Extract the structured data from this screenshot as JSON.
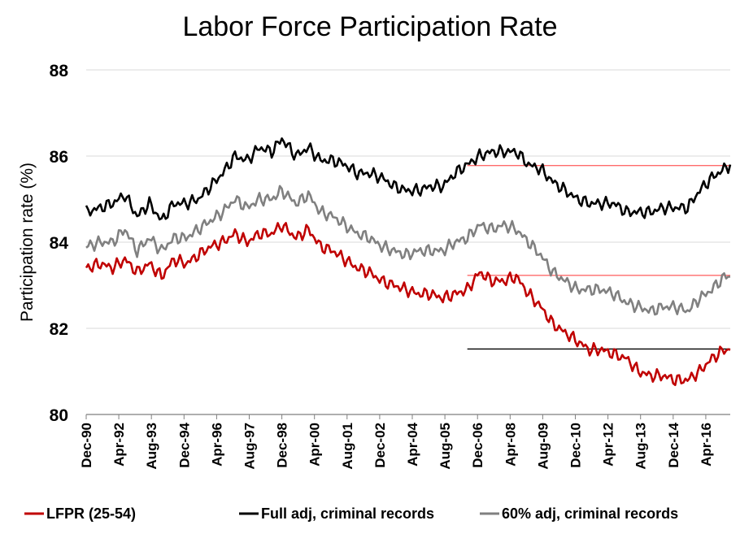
{
  "chart_data": {
    "type": "line",
    "title": "Labor Force Participation Rate",
    "ylabel": "Participation rate (%)",
    "xlabel": "",
    "ylim": [
      80,
      88
    ],
    "yticks": [
      80,
      82,
      84,
      86,
      88
    ],
    "xlim": [
      1990.917,
      2017.25
    ],
    "x_tick_labels": [
      "Dec-90",
      "Apr-92",
      "Aug-93",
      "Dec-94",
      "Apr-96",
      "Aug-97",
      "Dec-98",
      "Apr-00",
      "Aug-01",
      "Dec-02",
      "Apr-04",
      "Aug-05",
      "Dec-06",
      "Apr-08",
      "Aug-09",
      "Dec-10",
      "Apr-12",
      "Aug-13",
      "Dec-14",
      "Apr-16"
    ],
    "x_tick_values": [
      1990.917,
      1992.25,
      1993.583,
      1994.917,
      1996.25,
      1997.583,
      1998.917,
      2000.25,
      2001.583,
      2002.917,
      2004.25,
      2005.583,
      2006.917,
      2008.25,
      2009.583,
      2010.917,
      2012.25,
      2013.583,
      2014.917,
      2016.25
    ],
    "grid": "horizontal",
    "legend_position": "bottom",
    "series": [
      {
        "name": "LFPR (25-54)",
        "color": "#c00000",
        "x": [
          1990.917,
          1991.5,
          1992.0,
          1992.5,
          1993.0,
          1993.5,
          1994.0,
          1994.5,
          1995.0,
          1995.5,
          1996.0,
          1996.5,
          1997.0,
          1997.5,
          1998.0,
          1998.5,
          1998.917,
          1999.5,
          2000.0,
          2000.5,
          2001.0,
          2001.5,
          2002.0,
          2002.5,
          2003.0,
          2003.5,
          2004.0,
          2004.5,
          2005.0,
          2005.5,
          2006.0,
          2006.5,
          2007.0,
          2007.5,
          2008.0,
          2008.5,
          2009.0,
          2009.5,
          2010.0,
          2010.5,
          2011.0,
          2011.5,
          2012.0,
          2012.5,
          2013.0,
          2013.5,
          2014.0,
          2014.5,
          2015.0,
          2015.5,
          2016.0,
          2016.5,
          2017.0,
          2017.25
        ],
        "values": [
          83.4,
          83.5,
          83.4,
          83.6,
          83.3,
          83.5,
          83.2,
          83.6,
          83.5,
          83.7,
          83.9,
          84.0,
          84.2,
          84.0,
          84.2,
          84.2,
          84.4,
          84.1,
          84.3,
          83.9,
          83.8,
          83.6,
          83.4,
          83.3,
          83.1,
          83.0,
          82.9,
          82.8,
          82.8,
          82.7,
          82.8,
          82.9,
          83.3,
          83.1,
          83.1,
          83.2,
          82.8,
          82.5,
          82.1,
          81.9,
          81.7,
          81.5,
          81.5,
          81.4,
          81.3,
          81.0,
          80.9,
          80.9,
          80.8,
          80.8,
          81.0,
          81.3,
          81.5,
          81.5
        ],
        "reference": {
          "value": 81.52,
          "from": 2006.5,
          "color": "#000000"
        }
      },
      {
        "name": "Full adj, criminal records",
        "color": "#000000",
        "x": [
          1990.917,
          1991.5,
          1992.0,
          1992.5,
          1993.0,
          1993.5,
          1994.0,
          1994.5,
          1995.0,
          1995.5,
          1996.0,
          1996.5,
          1997.0,
          1997.5,
          1998.0,
          1998.5,
          1998.917,
          1999.5,
          2000.0,
          2000.5,
          2001.0,
          2001.5,
          2002.0,
          2002.5,
          2003.0,
          2003.5,
          2004.0,
          2004.5,
          2005.0,
          2005.5,
          2006.0,
          2006.5,
          2007.0,
          2007.5,
          2008.0,
          2008.5,
          2009.0,
          2009.5,
          2010.0,
          2010.5,
          2011.0,
          2011.5,
          2012.0,
          2012.5,
          2013.0,
          2013.5,
          2014.0,
          2014.5,
          2015.0,
          2015.5,
          2016.0,
          2016.5,
          2017.0,
          2017.25
        ],
        "values": [
          84.7,
          84.8,
          84.9,
          85.1,
          84.6,
          84.9,
          84.5,
          84.9,
          84.9,
          85.0,
          85.3,
          85.6,
          86.0,
          85.9,
          86.2,
          86.1,
          86.4,
          86.0,
          86.2,
          85.9,
          85.9,
          85.8,
          85.6,
          85.6,
          85.5,
          85.3,
          85.2,
          85.2,
          85.3,
          85.3,
          85.6,
          85.8,
          86.0,
          86.1,
          86.1,
          86.1,
          85.8,
          85.7,
          85.4,
          85.2,
          85.0,
          84.9,
          84.9,
          84.9,
          84.7,
          84.7,
          84.7,
          84.8,
          84.8,
          84.8,
          85.2,
          85.5,
          85.7,
          85.8
        ],
        "reference": {
          "value": 85.78,
          "from": 2006.5,
          "color": "#ff6b6b"
        }
      },
      {
        "name": "60% adj, criminal records",
        "color": "#808080",
        "x": [
          1990.917,
          1991.5,
          1992.0,
          1992.5,
          1993.0,
          1993.5,
          1994.0,
          1994.5,
          1995.0,
          1995.5,
          1996.0,
          1996.5,
          1997.0,
          1997.5,
          1998.0,
          1998.5,
          1998.917,
          1999.5,
          2000.0,
          2000.5,
          2001.0,
          2001.5,
          2002.0,
          2002.5,
          2003.0,
          2003.5,
          2004.0,
          2004.5,
          2005.0,
          2005.5,
          2006.0,
          2006.5,
          2007.0,
          2007.5,
          2008.0,
          2008.5,
          2009.0,
          2009.5,
          2010.0,
          2010.5,
          2011.0,
          2011.5,
          2012.0,
          2012.5,
          2013.0,
          2013.5,
          2014.0,
          2014.5,
          2015.0,
          2015.5,
          2016.0,
          2016.5,
          2017.0,
          2017.25
        ],
        "values": [
          83.9,
          84.0,
          84.0,
          84.3,
          83.8,
          84.1,
          83.8,
          84.1,
          84.1,
          84.3,
          84.5,
          84.7,
          85.0,
          84.8,
          85.0,
          85.0,
          85.2,
          84.9,
          85.1,
          84.7,
          84.6,
          84.4,
          84.2,
          84.1,
          83.9,
          83.8,
          83.7,
          83.8,
          83.8,
          83.8,
          84.0,
          84.1,
          84.4,
          84.3,
          84.4,
          84.3,
          84.0,
          83.7,
          83.3,
          83.1,
          82.9,
          82.9,
          82.9,
          82.8,
          82.6,
          82.5,
          82.4,
          82.5,
          82.5,
          82.4,
          82.7,
          82.9,
          83.2,
          83.2
        ],
        "reference": {
          "value": 83.23,
          "from": 2006.5,
          "color": "#ff6b6b"
        }
      }
    ]
  }
}
